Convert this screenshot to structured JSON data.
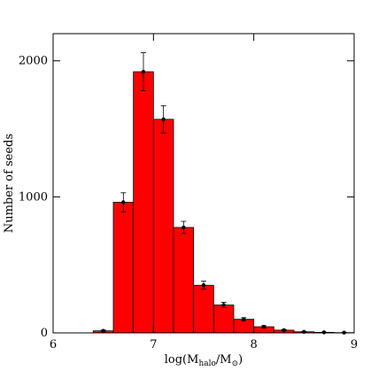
{
  "chart_data": {
    "type": "histogram",
    "xlabel": [
      "log(M",
      "halo",
      "/M",
      "⊙",
      ")"
    ],
    "ylabel": "Number of seeds",
    "bins": [
      6.4,
      6.6,
      6.8,
      7.0,
      7.2,
      7.4,
      7.6,
      7.8,
      8.0,
      8.2,
      8.4,
      8.6,
      8.8,
      9.0
    ],
    "values": [
      15,
      960,
      1920,
      1570,
      775,
      350,
      205,
      100,
      45,
      20,
      8,
      4,
      2
    ],
    "errors": [
      5,
      70,
      140,
      100,
      45,
      30,
      20,
      12,
      8,
      5,
      3,
      2,
      1
    ],
    "color": "#ff0000",
    "xlim": [
      6,
      9
    ],
    "xticks": [
      6,
      7,
      8,
      9
    ],
    "ylim": [
      0,
      2200
    ],
    "yticks": [
      0,
      1000,
      2000
    ]
  }
}
